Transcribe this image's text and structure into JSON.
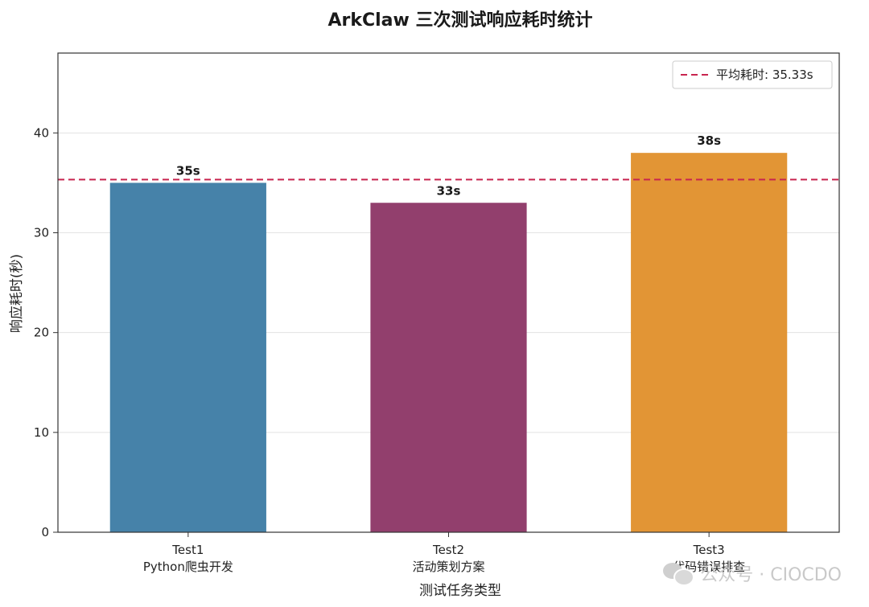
{
  "chart_data": {
    "type": "bar",
    "title": "ArkClaw 三次测试响应耗时统计",
    "xlabel": "测试任务类型",
    "ylabel": "响应耗时(秒)",
    "categories": [
      {
        "line1": "Test1",
        "line2": "Python爬虫开发"
      },
      {
        "line1": "Test2",
        "line2": "活动策划方案"
      },
      {
        "line1": "Test3",
        "line2": "代码错误排查"
      }
    ],
    "values": [
      35,
      33,
      38
    ],
    "value_labels": [
      "35s",
      "33s",
      "38s"
    ],
    "colors": [
      "#4682a9",
      "#923f6d",
      "#e29535"
    ],
    "ylim": [
      0,
      48
    ],
    "yticks": [
      0,
      10,
      20,
      30,
      40
    ],
    "grid": "horizontal",
    "reference_line": {
      "value": 35.33,
      "label": "平均耗时: 35.33s",
      "color": "#c8254f",
      "style": "dashed"
    },
    "legend_position": "top-right"
  },
  "watermark": {
    "text": "公众号 · CIOCDO",
    "icon": "wechat-icon"
  }
}
